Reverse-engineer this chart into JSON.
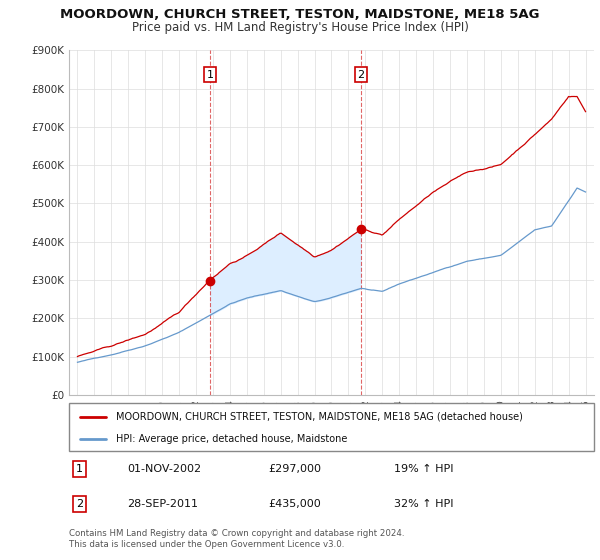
{
  "title": "MOORDOWN, CHURCH STREET, TESTON, MAIDSTONE, ME18 5AG",
  "subtitle": "Price paid vs. HM Land Registry's House Price Index (HPI)",
  "legend_line1": "MOORDOWN, CHURCH STREET, TESTON, MAIDSTONE, ME18 5AG (detached house)",
  "legend_line2": "HPI: Average price, detached house, Maidstone",
  "sale1_date": "01-NOV-2002",
  "sale1_price": "£297,000",
  "sale1_hpi": "19% ↑ HPI",
  "sale1_year": 2002.83,
  "sale1_value": 297000,
  "sale2_date": "28-SEP-2011",
  "sale2_price": "£435,000",
  "sale2_hpi": "32% ↑ HPI",
  "sale2_year": 2011.75,
  "sale2_value": 435000,
  "footer": "Contains HM Land Registry data © Crown copyright and database right 2024.\nThis data is licensed under the Open Government Licence v3.0.",
  "red_color": "#cc0000",
  "blue_color": "#6699cc",
  "fill_color": "#ddeeff",
  "background_color": "#ffffff",
  "ylim": [
    0,
    900000
  ],
  "xlim_start": 1994.5,
  "xlim_end": 2025.5
}
